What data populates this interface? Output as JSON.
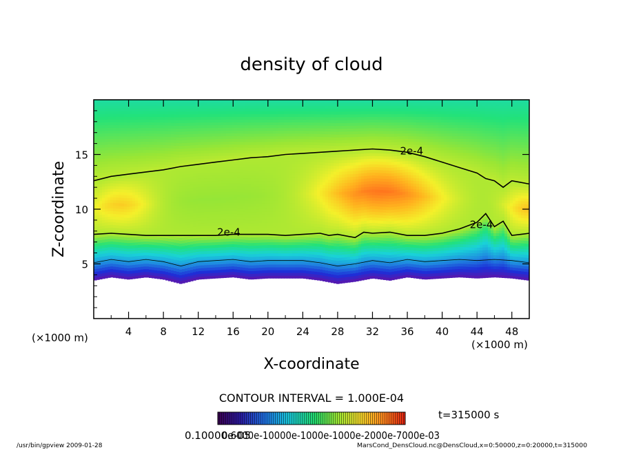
{
  "chart_data": {
    "type": "heatmap",
    "title": "density of cloud",
    "xlabel": "X-coordinate",
    "ylabel": "Z-coordinate",
    "x_unit": "(×1000 m)",
    "y_unit": "(×1000 m)",
    "xlim": [
      0,
      50
    ],
    "ylim": [
      0,
      20
    ],
    "x_ticks": [
      4,
      8,
      12,
      16,
      20,
      24,
      28,
      32,
      36,
      40,
      44,
      48
    ],
    "y_ticks": [
      5,
      10,
      15
    ],
    "contour_interval_label": "CONTOUR INTERVAL = 1.000E-04",
    "contour_label": "2e-4",
    "time_label": "t=315000 s",
    "colorbar_labels": "0.10000e-05",
    "colorbar_labels_overlap": "0.6000e-10000e-1000e-1000e-2000e-7000e-03",
    "footer_left": "/usr/bin/gpview   2009-01-28",
    "footer_right": "MarsCond_DensCloud.nc@DensCloud,x=0:50000,z=0:20000,t=315000",
    "contour_upper_2e4": {
      "x": [
        0,
        2,
        4,
        6,
        8,
        10,
        12,
        14,
        16,
        18,
        20,
        22,
        24,
        26,
        28,
        30,
        32,
        34,
        36,
        38,
        40,
        42,
        44,
        45,
        46,
        47,
        48,
        50
      ],
      "z": [
        12.6,
        13.0,
        13.2,
        13.4,
        13.6,
        13.9,
        14.1,
        14.3,
        14.5,
        14.7,
        14.8,
        15.0,
        15.1,
        15.2,
        15.3,
        15.4,
        15.5,
        15.4,
        15.2,
        14.8,
        14.3,
        13.8,
        13.3,
        12.8,
        12.6,
        12.0,
        12.6,
        12.3
      ]
    },
    "contour_lower_2e4": {
      "x": [
        0,
        2,
        4,
        6,
        8,
        10,
        12,
        14,
        16,
        18,
        20,
        22,
        24,
        26,
        27,
        28,
        30,
        31,
        32,
        34,
        36,
        38,
        40,
        42,
        44,
        45,
        46,
        47,
        48,
        50
      ],
      "z": [
        7.7,
        7.8,
        7.7,
        7.6,
        7.6,
        7.6,
        7.6,
        7.6,
        7.7,
        7.7,
        7.7,
        7.6,
        7.7,
        7.8,
        7.6,
        7.7,
        7.4,
        7.9,
        7.8,
        7.9,
        7.6,
        7.6,
        7.8,
        8.2,
        8.8,
        9.6,
        8.4,
        8.9,
        7.6,
        7.8
      ]
    },
    "cloud_base": {
      "x": [
        0,
        2,
        4,
        6,
        8,
        10,
        12,
        14,
        16,
        18,
        20,
        22,
        24,
        26,
        28,
        30,
        32,
        34,
        36,
        38,
        40,
        42,
        44,
        46,
        48,
        50
      ],
      "z": [
        3.5,
        3.8,
        3.6,
        3.8,
        3.6,
        3.2,
        3.6,
        3.7,
        3.8,
        3.6,
        3.7,
        3.7,
        3.7,
        3.5,
        3.2,
        3.4,
        3.7,
        3.5,
        3.8,
        3.6,
        3.7,
        3.8,
        3.7,
        3.8,
        3.7,
        3.5
      ]
    },
    "colors": [
      "#6b0fa0",
      "#1d2fd8",
      "#1f8fe0",
      "#19d2d8",
      "#22e27a",
      "#9be634",
      "#f4f02a",
      "#ffb21e",
      "#ff7a1e",
      "#ff4a10"
    ]
  }
}
